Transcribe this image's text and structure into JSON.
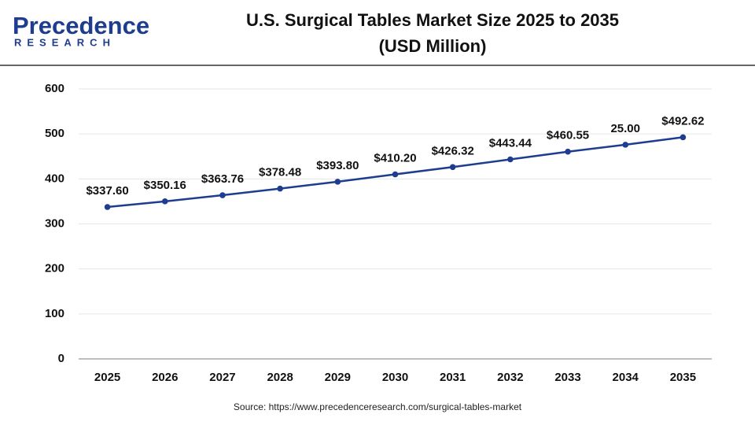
{
  "logo": {
    "name": "Precedence",
    "tagline": "RESEARCH"
  },
  "chart_data": {
    "type": "line",
    "title": "U.S. Surgical Tables Market Size 2025 to 2035",
    "subtitle": "(USD Million)",
    "categories": [
      "2025",
      "2026",
      "2027",
      "2028",
      "2029",
      "2030",
      "2031",
      "2032",
      "2033",
      "2034",
      "2035"
    ],
    "series": [
      {
        "color": "#1f3d8f",
        "values": [
          337.6,
          350.16,
          363.76,
          378.48,
          393.8,
          410.2,
          426.32,
          443.44,
          460.55,
          476,
          492.62
        ],
        "value_labels": [
          "$337.60",
          "$350.16",
          "$363.76",
          "$378.48",
          "$393.80",
          "$410.20",
          "$426.32",
          "$443.44",
          "$460.55",
          null,
          "$492.62"
        ]
      }
    ],
    "annotations": [
      {
        "text": "25.00",
        "category": "2034"
      }
    ],
    "ylim": [
      0,
      600
    ],
    "yticks": [
      0,
      100,
      200,
      300,
      400,
      500,
      600
    ],
    "grid": true,
    "source": "Source: https://www.precedenceresearch.com/surgical-tables-market"
  }
}
